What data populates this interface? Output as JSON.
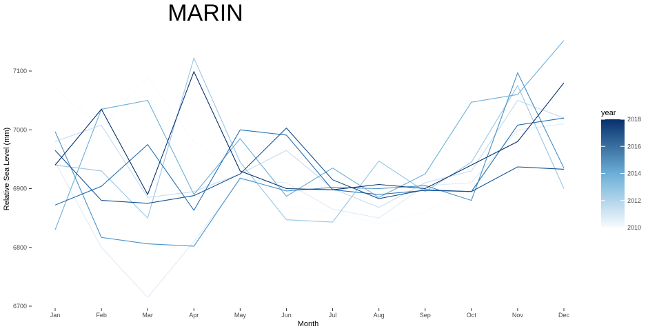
{
  "chart_data": {
    "type": "line",
    "title": "MARIN",
    "xlabel": "Month",
    "ylabel": "Relative Sea Level (mm)",
    "categories": [
      "Jan",
      "Feb",
      "Mar",
      "Apr",
      "May",
      "Jun",
      "Jul",
      "Aug",
      "Sep",
      "Oct",
      "Nov",
      "Dec"
    ],
    "ylim": [
      6700,
      7160
    ],
    "yticks": [
      6700,
      6800,
      6900,
      7000,
      7100
    ],
    "yticklabels": [
      "6700",
      "6800",
      "6900",
      "7000",
      "7100"
    ],
    "grid": false,
    "legend": {
      "title": "year",
      "placement": "right",
      "range": [
        2010,
        2018
      ],
      "ticks": [
        "2010",
        "2012",
        "2014",
        "2016",
        "2018"
      ],
      "low_color": "#f7fbff",
      "high_color": "#08306b"
    },
    "series": [
      {
        "year": 2010,
        "values": [
          7070,
          7005,
          7090,
          6980,
          6925,
          6870,
          6860,
          6840,
          6860,
          6905,
          6955,
          7030
        ]
      },
      {
        "year": 2011,
        "values": [
          6945,
          6800,
          6715,
          6810,
          6915,
          6910,
          6865,
          6850,
          6905,
          6910,
          7000,
          7010
        ]
      },
      {
        "year": 2012,
        "values": [
          6980,
          7008,
          6885,
          6895,
          6925,
          6965,
          6900,
          6868,
          6910,
          6930,
          7050,
          7020
        ]
      },
      {
        "year": 2013,
        "values": [
          6940,
          6930,
          6850,
          7122,
          6945,
          6847,
          6843,
          6947,
          6895,
          6945,
          7075,
          6900
        ]
      },
      {
        "year": 2014,
        "values": [
          6830,
          7035,
          7050,
          6890,
          6985,
          6887,
          6935,
          6885,
          6925,
          7047,
          7060,
          7152
        ]
      },
      {
        "year": 2015,
        "values": [
          6997,
          6817,
          6806,
          6802,
          6918,
          6896,
          6902,
          6900,
          6905,
          6880,
          7097,
          6935
        ]
      },
      {
        "year": 2016,
        "values": [
          6872,
          6904,
          6975,
          6863,
          7000,
          6991,
          6898,
          6890,
          6897,
          6895,
          7008,
          7020
        ]
      },
      {
        "year": 2017,
        "values": [
          6965,
          6880,
          6875,
          6888,
          6925,
          7003,
          6915,
          6883,
          6898,
          6895,
          6937,
          6933
        ]
      },
      {
        "year": 2018,
        "values": [
          6940,
          7035,
          6890,
          7099,
          6930,
          6900,
          6898,
          6907,
          6900,
          6940,
          6980,
          7080
        ]
      }
    ]
  }
}
